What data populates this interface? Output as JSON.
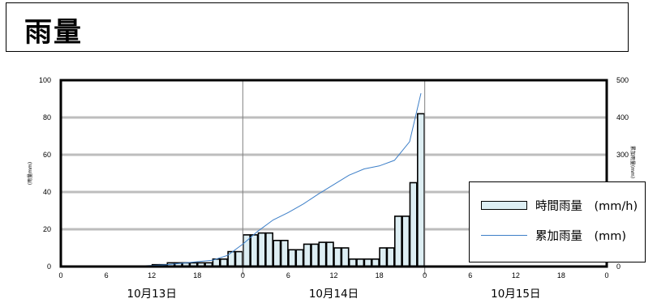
{
  "header": {
    "title": "雨量"
  },
  "legend": {
    "hourly_label": "時間雨量　(mm/h)",
    "cumulative_label": "累加雨量　(mm)"
  },
  "colors": {
    "bar_fill": "#ddeef3",
    "cumulative_line": "#3d7fc8",
    "grid": "#bdbdbd"
  },
  "chart_data": {
    "type": "bar",
    "title": "",
    "left_axis": {
      "label": "(雨量mm)",
      "ylim": [
        0,
        100
      ],
      "ticks": [
        0,
        20,
        40,
        60,
        80,
        100
      ]
    },
    "right_axis": {
      "label": "累加雨量(mm)",
      "ylim": [
        0,
        500
      ],
      "ticks": [
        0,
        100,
        200,
        300,
        400,
        500
      ]
    },
    "x_tick_labels": [
      "0",
      "6",
      "12",
      "18",
      "0",
      "6",
      "12",
      "18",
      "0",
      "6",
      "12",
      "18",
      "0"
    ],
    "day_labels": [
      "10月13日",
      "10月14日",
      "10月15日"
    ],
    "hours_per_day": 24,
    "series": [
      {
        "name": "時間雨量　(mm/h)",
        "kind": "bar",
        "axis": "left",
        "values": [
          0,
          0,
          0,
          0,
          0,
          0,
          0,
          0,
          0,
          0,
          0,
          0,
          1,
          1,
          2,
          2,
          2,
          2,
          2,
          2,
          4,
          4,
          8,
          8,
          17,
          17,
          18,
          18,
          14,
          14,
          9,
          9,
          12,
          12,
          13,
          13,
          10,
          10,
          4,
          4,
          4,
          4,
          10,
          10,
          27,
          27,
          45,
          82,
          0,
          0,
          0,
          0,
          0,
          0,
          0,
          0,
          0,
          0,
          0,
          0,
          0,
          0,
          0,
          0,
          0,
          0,
          0,
          0,
          0,
          0,
          0,
          0
        ]
      },
      {
        "name": "累加雨量　(mm)",
        "kind": "line",
        "axis": "right",
        "x_hours": [
          8,
          10,
          12,
          14,
          16,
          18,
          20,
          22,
          24,
          26,
          28,
          30,
          32,
          34,
          36,
          38,
          40,
          42,
          44,
          46,
          47.5
        ],
        "values": [
          0,
          1,
          3,
          5,
          9,
          13,
          17,
          30,
          60,
          95,
          125,
          145,
          168,
          195,
          220,
          245,
          262,
          270,
          285,
          335,
          465
        ]
      }
    ]
  }
}
